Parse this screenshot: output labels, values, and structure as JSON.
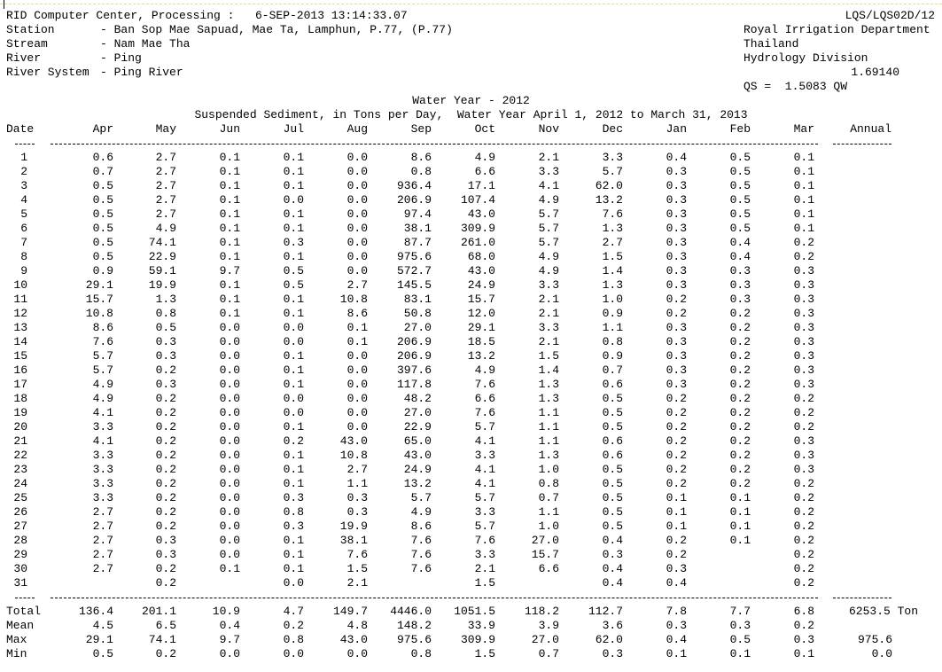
{
  "header": {
    "processing_label": "RID Computer Center, Processing :",
    "processing_date": "6-SEP-2013 13:14:33.07",
    "report_code": "LQS/LQS02D/12",
    "station_label": "Station",
    "station_value": "- Ban Sop Mae Sapuad, Mae Ta, Lamphun, P.77, (P.77)",
    "stream_label": "Stream",
    "stream_value": "- Nam Mae Tha",
    "river_label": "River",
    "river_value": "- Ping",
    "river_system_label": "River System",
    "river_system_value": "- Ping River",
    "org_line1": "Royal Irrigation Department",
    "org_line2": "Thailand",
    "org_line3": "Hydrology Division",
    "coefficient": "1.69140",
    "equation": "QS =  1.5083 QW"
  },
  "title": {
    "water_year": "Water Year - 2012",
    "subtitle": "Suspended Sediment, in Tons per Day,  Water Year April 1, 2012 to March 31, 2013"
  },
  "table": {
    "date_header": "Date",
    "months": [
      "Apr",
      "May",
      "Jun",
      "Jul",
      "Aug",
      "Sep",
      "Oct",
      "Nov",
      "Dec",
      "Jan",
      "Feb",
      "Mar"
    ],
    "annual_header": "Annual",
    "rows": [
      [
        "1",
        "0.6",
        "2.7",
        "0.1",
        "0.1",
        "0.0",
        "8.6",
        "4.9",
        "2.1",
        "3.3",
        "0.4",
        "0.5",
        "0.1"
      ],
      [
        "2",
        "0.7",
        "2.7",
        "0.1",
        "0.1",
        "0.0",
        "0.8",
        "6.6",
        "3.3",
        "5.7",
        "0.3",
        "0.5",
        "0.1"
      ],
      [
        "3",
        "0.5",
        "2.7",
        "0.1",
        "0.1",
        "0.0",
        "936.4",
        "17.1",
        "4.1",
        "62.0",
        "0.3",
        "0.5",
        "0.1"
      ],
      [
        "4",
        "0.5",
        "2.7",
        "0.1",
        "0.0",
        "0.0",
        "206.9",
        "107.4",
        "4.9",
        "13.2",
        "0.3",
        "0.5",
        "0.1"
      ],
      [
        "5",
        "0.5",
        "2.7",
        "0.1",
        "0.1",
        "0.0",
        "97.4",
        "43.0",
        "5.7",
        "7.6",
        "0.3",
        "0.5",
        "0.1"
      ],
      [
        "6",
        "0.5",
        "4.9",
        "0.1",
        "0.1",
        "0.0",
        "38.1",
        "309.9",
        "5.7",
        "1.3",
        "0.3",
        "0.5",
        "0.1"
      ],
      [
        "7",
        "0.5",
        "74.1",
        "0.1",
        "0.3",
        "0.0",
        "87.7",
        "261.0",
        "5.7",
        "2.7",
        "0.3",
        "0.4",
        "0.2"
      ],
      [
        "8",
        "0.5",
        "22.9",
        "0.1",
        "0.1",
        "0.0",
        "975.6",
        "68.0",
        "4.9",
        "1.5",
        "0.3",
        "0.4",
        "0.2"
      ],
      [
        "9",
        "0.9",
        "59.1",
        "9.7",
        "0.5",
        "0.0",
        "572.7",
        "43.0",
        "4.9",
        "1.4",
        "0.3",
        "0.3",
        "0.3"
      ],
      [
        "10",
        "29.1",
        "19.9",
        "0.1",
        "0.5",
        "2.7",
        "145.5",
        "24.9",
        "3.3",
        "1.3",
        "0.3",
        "0.3",
        "0.3"
      ],
      [
        "11",
        "15.7",
        "1.3",
        "0.1",
        "0.1",
        "10.8",
        "83.1",
        "15.7",
        "2.1",
        "1.0",
        "0.2",
        "0.3",
        "0.3"
      ],
      [
        "12",
        "10.8",
        "0.8",
        "0.1",
        "0.1",
        "8.6",
        "50.8",
        "12.0",
        "2.1",
        "0.9",
        "0.2",
        "0.2",
        "0.3"
      ],
      [
        "13",
        "8.6",
        "0.5",
        "0.0",
        "0.0",
        "0.1",
        "27.0",
        "29.1",
        "3.3",
        "1.1",
        "0.3",
        "0.2",
        "0.3"
      ],
      [
        "14",
        "7.6",
        "0.3",
        "0.0",
        "0.0",
        "0.1",
        "206.9",
        "18.5",
        "2.1",
        "0.8",
        "0.3",
        "0.2",
        "0.3"
      ],
      [
        "15",
        "5.7",
        "0.3",
        "0.0",
        "0.1",
        "0.0",
        "206.9",
        "13.2",
        "1.5",
        "0.9",
        "0.3",
        "0.2",
        "0.3"
      ],
      [
        "16",
        "5.7",
        "0.2",
        "0.0",
        "0.1",
        "0.0",
        "397.6",
        "4.9",
        "1.4",
        "0.7",
        "0.3",
        "0.2",
        "0.3"
      ],
      [
        "17",
        "4.9",
        "0.3",
        "0.0",
        "0.1",
        "0.0",
        "117.8",
        "7.6",
        "1.3",
        "0.6",
        "0.3",
        "0.2",
        "0.3"
      ],
      [
        "18",
        "4.9",
        "0.2",
        "0.0",
        "0.0",
        "0.0",
        "48.2",
        "6.6",
        "1.3",
        "0.5",
        "0.2",
        "0.2",
        "0.2"
      ],
      [
        "19",
        "4.1",
        "0.2",
        "0.0",
        "0.0",
        "0.0",
        "27.0",
        "7.6",
        "1.1",
        "0.5",
        "0.2",
        "0.2",
        "0.2"
      ],
      [
        "20",
        "3.3",
        "0.2",
        "0.0",
        "0.1",
        "0.0",
        "22.9",
        "5.7",
        "1.1",
        "0.5",
        "0.2",
        "0.2",
        "0.2"
      ],
      [
        "21",
        "4.1",
        "0.2",
        "0.0",
        "0.2",
        "43.0",
        "65.0",
        "4.1",
        "1.1",
        "0.6",
        "0.2",
        "0.2",
        "0.3"
      ],
      [
        "22",
        "3.3",
        "0.2",
        "0.0",
        "0.1",
        "10.8",
        "43.0",
        "3.3",
        "1.3",
        "0.6",
        "0.2",
        "0.2",
        "0.3"
      ],
      [
        "23",
        "3.3",
        "0.2",
        "0.0",
        "0.1",
        "2.7",
        "24.9",
        "4.1",
        "1.0",
        "0.5",
        "0.2",
        "0.2",
        "0.3"
      ],
      [
        "24",
        "3.3",
        "0.2",
        "0.0",
        "0.1",
        "1.1",
        "13.2",
        "4.1",
        "0.8",
        "0.5",
        "0.2",
        "0.2",
        "0.2"
      ],
      [
        "25",
        "3.3",
        "0.2",
        "0.0",
        "0.3",
        "0.3",
        "5.7",
        "5.7",
        "0.7",
        "0.5",
        "0.1",
        "0.1",
        "0.2"
      ],
      [
        "26",
        "2.7",
        "0.2",
        "0.0",
        "0.8",
        "0.3",
        "4.9",
        "3.3",
        "1.1",
        "0.5",
        "0.1",
        "0.1",
        "0.2"
      ],
      [
        "27",
        "2.7",
        "0.2",
        "0.0",
        "0.3",
        "19.9",
        "8.6",
        "5.7",
        "1.0",
        "0.5",
        "0.1",
        "0.1",
        "0.2"
      ],
      [
        "28",
        "2.7",
        "0.3",
        "0.0",
        "0.1",
        "38.1",
        "7.6",
        "7.6",
        "27.0",
        "0.4",
        "0.2",
        "0.1",
        "0.2"
      ],
      [
        "29",
        "2.7",
        "0.3",
        "0.0",
        "0.1",
        "7.6",
        "7.6",
        "3.3",
        "15.7",
        "0.3",
        "0.2",
        "",
        "0.2"
      ],
      [
        "30",
        "2.7",
        "0.2",
        "0.1",
        "0.1",
        "1.5",
        "7.6",
        "2.1",
        "6.6",
        "0.4",
        "0.3",
        "",
        "0.2"
      ],
      [
        "31",
        "",
        "0.2",
        "",
        "0.0",
        "2.1",
        "",
        "1.5",
        "",
        "0.4",
        "0.4",
        "",
        "0.2"
      ]
    ],
    "summary": [
      {
        "label": "Total",
        "values": [
          "136.4",
          "201.1",
          "10.9",
          "4.7",
          "149.7",
          "4446.0",
          "1051.5",
          "118.2",
          "112.7",
          "7.8",
          "7.7",
          "6.8"
        ],
        "annual": "6253.5 Ton"
      },
      {
        "label": "Mean",
        "values": [
          "4.5",
          "6.5",
          "0.4",
          "0.2",
          "4.8",
          "148.2",
          "33.9",
          "3.9",
          "3.6",
          "0.3",
          "0.3",
          "0.2"
        ],
        "annual": ""
      },
      {
        "label": "Max",
        "values": [
          "29.1",
          "74.1",
          "9.7",
          "0.8",
          "43.0",
          "975.6",
          "309.9",
          "27.0",
          "62.0",
          "0.4",
          "0.5",
          "0.3"
        ],
        "annual": "975.6"
      },
      {
        "label": "Min",
        "values": [
          "0.5",
          "0.2",
          "0.0",
          "0.0",
          "0.0",
          "0.8",
          "1.5",
          "0.7",
          "0.3",
          "0.1",
          "0.1",
          "0.1"
        ],
        "annual": "0.0"
      }
    ]
  }
}
